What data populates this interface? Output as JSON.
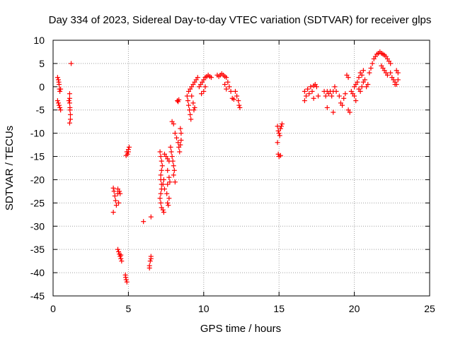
{
  "chart_data": {
    "type": "scatter",
    "title": "Day 334 of 2023, Sidereal Day-to-day VTEC variation (SDTVAR) for receiver glps",
    "xlabel": "GPS time / hours",
    "ylabel": "SDTVAR / TECUs",
    "xlim": [
      0,
      25
    ],
    "ylim": [
      -45,
      10
    ],
    "xticks": [
      "0",
      "5",
      "10",
      "15",
      "20",
      "25"
    ],
    "yticks": [
      "10",
      "5",
      "0",
      "-5",
      "-10",
      "-15",
      "-20",
      "-25",
      "-30",
      "-35",
      "-40",
      "-45"
    ],
    "grid": true,
    "marker": "+",
    "color": "#ff0000",
    "series": [
      {
        "name": "SDTVAR",
        "points": [
          [
            0.3,
            2
          ],
          [
            0.35,
            1.5
          ],
          [
            0.4,
            0.5
          ],
          [
            0.42,
            -0.5
          ],
          [
            0.45,
            -1
          ],
          [
            0.3,
            -3
          ],
          [
            0.35,
            -3.5
          ],
          [
            0.4,
            -4
          ],
          [
            0.45,
            -4.5
          ],
          [
            0.5,
            -5
          ],
          [
            0.5,
            -0.5
          ],
          [
            0.38,
            1
          ],
          [
            1.1,
            -1.5
          ],
          [
            1.1,
            -2.5
          ],
          [
            1.1,
            -3.5
          ],
          [
            1.12,
            -4.5
          ],
          [
            1.12,
            -5
          ],
          [
            1.15,
            -6
          ],
          [
            1.15,
            -7
          ],
          [
            1.1,
            -7.8
          ],
          [
            1.2,
            5
          ],
          [
            1.05,
            -3
          ],
          [
            4.0,
            -21.8
          ],
          [
            4.05,
            -22.5
          ],
          [
            4.1,
            -23.5
          ],
          [
            4.15,
            -24.5
          ],
          [
            4.0,
            -27
          ],
          [
            4.3,
            -22
          ],
          [
            4.3,
            -23
          ],
          [
            4.4,
            -22.5
          ],
          [
            4.45,
            -23
          ],
          [
            4.35,
            -25
          ],
          [
            4.2,
            -25.5
          ],
          [
            4.3,
            -35
          ],
          [
            4.35,
            -35.5
          ],
          [
            4.4,
            -36
          ],
          [
            4.45,
            -36.5
          ],
          [
            4.5,
            -37
          ],
          [
            4.55,
            -37.5
          ],
          [
            4.5,
            -36.2
          ],
          [
            4.8,
            -40.5
          ],
          [
            4.85,
            -41.5
          ],
          [
            4.9,
            -42
          ],
          [
            4.82,
            -41
          ],
          [
            4.9,
            -14
          ],
          [
            4.95,
            -14.5
          ],
          [
            5.0,
            -13.5
          ],
          [
            5.05,
            -13
          ],
          [
            4.85,
            -14.8
          ],
          [
            5.0,
            -14
          ],
          [
            6.0,
            -29
          ],
          [
            6.5,
            -28
          ],
          [
            6.5,
            -36.5
          ],
          [
            6.45,
            -37.5
          ],
          [
            6.4,
            -38.5
          ],
          [
            6.4,
            -39
          ],
          [
            6.5,
            -37
          ],
          [
            7.1,
            -14
          ],
          [
            7.15,
            -15
          ],
          [
            7.2,
            -16
          ],
          [
            7.25,
            -17
          ],
          [
            7.2,
            -18
          ],
          [
            7.15,
            -19
          ],
          [
            7.15,
            -20
          ],
          [
            7.2,
            -21
          ],
          [
            7.2,
            -22
          ],
          [
            7.15,
            -23
          ],
          [
            7.1,
            -24
          ],
          [
            7.15,
            -25
          ],
          [
            7.2,
            -26
          ],
          [
            7.3,
            -26.5
          ],
          [
            7.35,
            -27
          ],
          [
            7.3,
            -21
          ],
          [
            7.35,
            -20
          ],
          [
            7.4,
            -22
          ],
          [
            7.4,
            -14.5
          ],
          [
            7.5,
            -15
          ],
          [
            7.6,
            -15.5
          ],
          [
            7.7,
            -16
          ],
          [
            7.6,
            -18
          ],
          [
            7.7,
            -19.5
          ],
          [
            7.75,
            -20.5
          ],
          [
            7.6,
            -21
          ],
          [
            7.55,
            -23
          ],
          [
            7.6,
            -25
          ],
          [
            7.65,
            -25.5
          ],
          [
            7.7,
            -24
          ],
          [
            7.8,
            -13
          ],
          [
            7.85,
            -14
          ],
          [
            7.9,
            -15
          ],
          [
            7.95,
            -16
          ],
          [
            8.0,
            -17
          ],
          [
            8.05,
            -18
          ],
          [
            8.1,
            -20.5
          ],
          [
            8.0,
            -19
          ],
          [
            7.9,
            -7.5
          ],
          [
            8.0,
            -8
          ],
          [
            8.1,
            -10
          ],
          [
            8.2,
            -11
          ],
          [
            8.3,
            -12
          ],
          [
            8.35,
            -13
          ],
          [
            8.4,
            -14
          ],
          [
            8.25,
            -3
          ],
          [
            8.3,
            -3.2
          ],
          [
            8.35,
            -2.8
          ],
          [
            8.45,
            -9
          ],
          [
            8.5,
            -10
          ],
          [
            8.5,
            -11.5
          ],
          [
            8.45,
            -12.5
          ],
          [
            8.9,
            -2
          ],
          [
            8.95,
            -3
          ],
          [
            9.0,
            -4
          ],
          [
            9.05,
            -5
          ],
          [
            9.1,
            -6
          ],
          [
            9.15,
            -7
          ],
          [
            9.0,
            -1
          ],
          [
            9.1,
            -0.5
          ],
          [
            9.2,
            0
          ],
          [
            9.3,
            0.5
          ],
          [
            9.4,
            1
          ],
          [
            9.5,
            1.5
          ],
          [
            9.6,
            2
          ],
          [
            9.2,
            -2
          ],
          [
            9.3,
            -3.5
          ],
          [
            9.35,
            -5
          ],
          [
            9.4,
            -4.5
          ],
          [
            9.7,
            0
          ],
          [
            9.8,
            0.5
          ],
          [
            9.9,
            1
          ],
          [
            10.0,
            1.5
          ],
          [
            10.1,
            2
          ],
          [
            10.2,
            2.2
          ],
          [
            10.3,
            2.5
          ],
          [
            10.4,
            2.2
          ],
          [
            10.5,
            2
          ],
          [
            10.0,
            -1
          ],
          [
            10.1,
            0
          ],
          [
            9.85,
            -1.5
          ],
          [
            10.9,
            2.5
          ],
          [
            11.0,
            2.2
          ],
          [
            11.1,
            2.5
          ],
          [
            11.2,
            2.8
          ],
          [
            11.3,
            2.5
          ],
          [
            11.4,
            2.2
          ],
          [
            11.5,
            2
          ],
          [
            11.6,
            1
          ],
          [
            11.7,
            0
          ],
          [
            11.8,
            -1
          ],
          [
            11.4,
            0.5
          ],
          [
            11.5,
            -0.5
          ],
          [
            11.9,
            -2.5
          ],
          [
            12.0,
            -2.7
          ],
          [
            12.1,
            -1
          ],
          [
            12.2,
            -2
          ],
          [
            12.3,
            -3
          ],
          [
            12.35,
            -4
          ],
          [
            12.4,
            -4.5
          ],
          [
            14.9,
            -8.5
          ],
          [
            14.95,
            -9.5
          ],
          [
            15.0,
            -10
          ],
          [
            15.05,
            -10.5
          ],
          [
            15.1,
            -9
          ],
          [
            15.15,
            -8.5
          ],
          [
            15.2,
            -8
          ],
          [
            14.9,
            -12
          ],
          [
            14.95,
            -14.5
          ],
          [
            15.0,
            -15
          ],
          [
            15.1,
            -14.8
          ],
          [
            16.7,
            -1
          ],
          [
            16.8,
            -2
          ],
          [
            16.9,
            -0.5
          ],
          [
            17.0,
            -1.5
          ],
          [
            17.1,
            0
          ],
          [
            17.2,
            -1
          ],
          [
            17.3,
            0.2
          ],
          [
            17.4,
            0.5
          ],
          [
            17.5,
            0
          ],
          [
            17.6,
            -2
          ],
          [
            16.7,
            -3
          ],
          [
            17.3,
            -2.5
          ],
          [
            18.0,
            -1
          ],
          [
            18.1,
            -2
          ],
          [
            18.2,
            -1
          ],
          [
            18.3,
            -1.5
          ],
          [
            18.4,
            -1
          ],
          [
            18.5,
            -2
          ],
          [
            18.6,
            -1
          ],
          [
            18.7,
            0
          ],
          [
            18.8,
            -1
          ],
          [
            18.2,
            -4.5
          ],
          [
            18.6,
            -5.5
          ],
          [
            19.0,
            -2
          ],
          [
            19.1,
            -3.5
          ],
          [
            19.2,
            -4
          ],
          [
            19.3,
            -2.5
          ],
          [
            19.4,
            -1.5
          ],
          [
            19.6,
            -5
          ],
          [
            19.7,
            -5.5
          ],
          [
            19.5,
            2.5
          ],
          [
            19.6,
            2
          ],
          [
            19.8,
            -1
          ],
          [
            19.9,
            -1.5
          ],
          [
            20.0,
            -2
          ],
          [
            20.1,
            -3
          ],
          [
            20.0,
            0
          ],
          [
            20.1,
            0.5
          ],
          [
            20.2,
            1
          ],
          [
            20.3,
            -0.5
          ],
          [
            20.4,
            -1
          ],
          [
            20.5,
            0
          ],
          [
            20.6,
            1
          ],
          [
            20.3,
            2
          ],
          [
            20.4,
            3
          ],
          [
            20.5,
            2.5
          ],
          [
            20.6,
            3.5
          ],
          [
            20.7,
            1.5
          ],
          [
            20.8,
            0
          ],
          [
            20.9,
            0.5
          ],
          [
            21.0,
            3
          ],
          [
            21.1,
            4
          ],
          [
            21.2,
            5
          ],
          [
            21.3,
            6
          ],
          [
            21.4,
            6.5
          ],
          [
            21.5,
            7
          ],
          [
            21.6,
            7.2
          ],
          [
            21.7,
            7.5
          ],
          [
            21.8,
            7.2
          ],
          [
            21.9,
            7
          ],
          [
            22.0,
            6.8
          ],
          [
            22.1,
            6.5
          ],
          [
            22.2,
            6
          ],
          [
            22.3,
            5.5
          ],
          [
            22.4,
            5
          ],
          [
            21.8,
            4.5
          ],
          [
            21.9,
            4
          ],
          [
            22.0,
            3.5
          ],
          [
            22.1,
            3
          ],
          [
            22.2,
            2.5
          ],
          [
            22.4,
            3
          ],
          [
            22.5,
            2
          ],
          [
            22.6,
            1.5
          ],
          [
            22.7,
            1
          ],
          [
            22.8,
            0.5
          ],
          [
            22.9,
            1.5
          ],
          [
            22.9,
            3
          ],
          [
            22.8,
            3.5
          ],
          [
            22.7,
            0.5
          ]
        ]
      }
    ]
  }
}
